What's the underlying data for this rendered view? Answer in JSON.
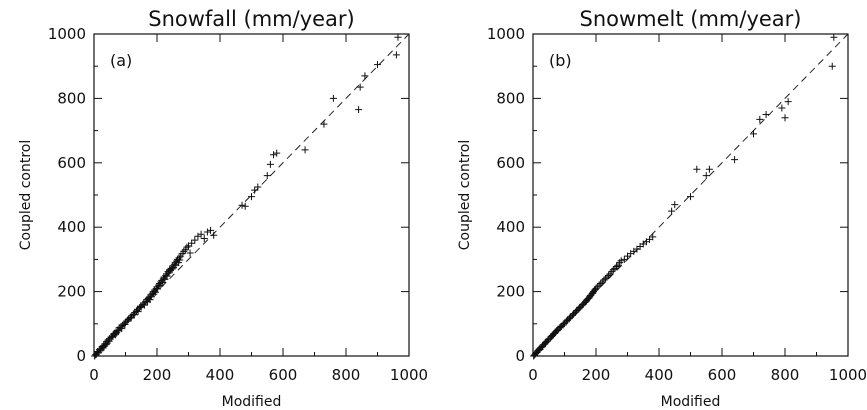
{
  "chart_data": [
    {
      "type": "scatter",
      "panel_label": "(a)",
      "title": "Snowfall (mm/year)",
      "xlabel": "Modified",
      "ylabel": "Coupled control",
      "xlim": [
        0,
        1000
      ],
      "ylim": [
        0,
        1000
      ],
      "xticks": [
        "0",
        "200",
        "400",
        "600",
        "800",
        "1000"
      ],
      "yticks": [
        "0",
        "200",
        "400",
        "600",
        "800",
        "1000"
      ],
      "marker": "plus",
      "reference_line": {
        "style": "dashed",
        "slope": 1.0,
        "intercept": 0,
        "x": [
          0,
          1000
        ]
      },
      "series": [
        {
          "x": [
            2,
            5,
            8,
            10,
            12,
            15,
            18,
            20,
            22,
            25,
            28,
            30,
            32,
            35,
            38,
            40,
            42,
            45,
            48,
            50,
            55,
            58,
            60,
            62,
            65,
            68,
            70,
            72,
            75,
            78,
            80,
            85,
            88,
            90,
            95,
            98,
            100,
            105,
            108,
            110,
            115,
            118,
            120,
            125,
            128,
            130,
            135,
            138,
            140,
            145,
            148,
            150,
            155,
            158,
            160,
            165,
            168,
            170,
            172,
            175,
            178,
            180,
            182,
            185,
            188,
            190,
            192,
            195,
            198,
            200,
            202,
            205,
            208,
            210,
            212,
            215,
            218,
            220,
            222,
            225,
            228,
            230,
            232,
            235,
            238,
            240,
            242,
            245,
            248,
            250,
            252,
            255,
            258,
            260,
            262,
            265,
            268,
            270,
            272,
            275,
            280,
            285,
            290,
            295,
            300,
            305,
            310,
            320,
            330,
            340,
            350,
            360,
            370,
            380,
            470,
            480,
            500,
            510,
            520,
            550,
            560,
            570,
            580,
            670,
            730,
            760,
            840,
            845,
            860,
            900,
            960,
            965
          ],
          "y": [
            0,
            4,
            6,
            10,
            14,
            12,
            20,
            22,
            18,
            28,
            25,
            32,
            30,
            38,
            35,
            45,
            40,
            50,
            46,
            54,
            58,
            62,
            60,
            68,
            70,
            66,
            75,
            72,
            80,
            78,
            88,
            90,
            85,
            95,
            100,
            98,
            105,
            108,
            112,
            115,
            120,
            118,
            125,
            130,
            128,
            135,
            140,
            145,
            138,
            150,
            155,
            152,
            160,
            165,
            158,
            170,
            175,
            168,
            178,
            182,
            175,
            190,
            185,
            195,
            200,
            192,
            205,
            198,
            210,
            215,
            208,
            220,
            225,
            218,
            230,
            235,
            228,
            240,
            245,
            238,
            250,
            255,
            248,
            262,
            258,
            268,
            265,
            272,
            270,
            280,
            275,
            285,
            290,
            282,
            295,
            300,
            290,
            305,
            298,
            310,
            318,
            325,
            330,
            338,
            342,
            320,
            350,
            360,
            372,
            378,
            365,
            385,
            390,
            375,
            468,
            465,
            495,
            515,
            525,
            560,
            595,
            625,
            630,
            640,
            720,
            800,
            765,
            835,
            870,
            905,
            935,
            990
          ]
        }
      ]
    },
    {
      "type": "scatter",
      "panel_label": "(b)",
      "title": "Snowmelt (mm/year)",
      "xlabel": "Modified",
      "ylabel": "Coupled control",
      "xlim": [
        0,
        1000
      ],
      "ylim": [
        0,
        1000
      ],
      "xticks": [
        "0",
        "200",
        "400",
        "600",
        "800",
        "1000"
      ],
      "yticks": [
        "0",
        "200",
        "400",
        "600",
        "800",
        "1000"
      ],
      "marker": "plus",
      "reference_line": {
        "style": "dashed",
        "slope": 1.0,
        "intercept": 0,
        "x": [
          0,
          1000
        ]
      },
      "series": [
        {
          "x": [
            2,
            5,
            8,
            10,
            12,
            15,
            18,
            20,
            22,
            25,
            28,
            30,
            32,
            35,
            38,
            40,
            42,
            45,
            48,
            50,
            55,
            58,
            60,
            62,
            65,
            68,
            70,
            72,
            75,
            78,
            80,
            85,
            88,
            90,
            95,
            98,
            100,
            105,
            108,
            110,
            115,
            118,
            120,
            125,
            128,
            130,
            135,
            138,
            140,
            145,
            148,
            150,
            155,
            158,
            160,
            165,
            168,
            170,
            172,
            175,
            178,
            180,
            182,
            185,
            188,
            190,
            192,
            195,
            198,
            200,
            205,
            210,
            215,
            220,
            225,
            230,
            235,
            240,
            245,
            250,
            255,
            260,
            265,
            270,
            275,
            280,
            290,
            300,
            310,
            320,
            330,
            340,
            350,
            360,
            370,
            380,
            440,
            450,
            500,
            520,
            550,
            560,
            640,
            700,
            720,
            740,
            790,
            800,
            810,
            950,
            955
          ],
          "y": [
            0,
            3,
            7,
            10,
            12,
            16,
            18,
            22,
            20,
            26,
            28,
            30,
            34,
            36,
            38,
            42,
            44,
            46,
            50,
            52,
            56,
            60,
            62,
            64,
            68,
            70,
            72,
            75,
            78,
            80,
            84,
            88,
            90,
            92,
            96,
            100,
            102,
            106,
            110,
            112,
            116,
            120,
            122,
            126,
            130,
            132,
            136,
            140,
            142,
            146,
            150,
            152,
            156,
            160,
            162,
            166,
            170,
            172,
            175,
            178,
            180,
            184,
            188,
            190,
            194,
            196,
            200,
            204,
            206,
            210,
            215,
            220,
            225,
            230,
            236,
            240,
            245,
            250,
            255,
            262,
            268,
            272,
            278,
            282,
            290,
            296,
            300,
            310,
            318,
            325,
            332,
            340,
            348,
            355,
            362,
            370,
            450,
            470,
            495,
            580,
            560,
            580,
            610,
            690,
            735,
            750,
            770,
            740,
            790,
            900,
            990
          ]
        }
      ]
    }
  ]
}
